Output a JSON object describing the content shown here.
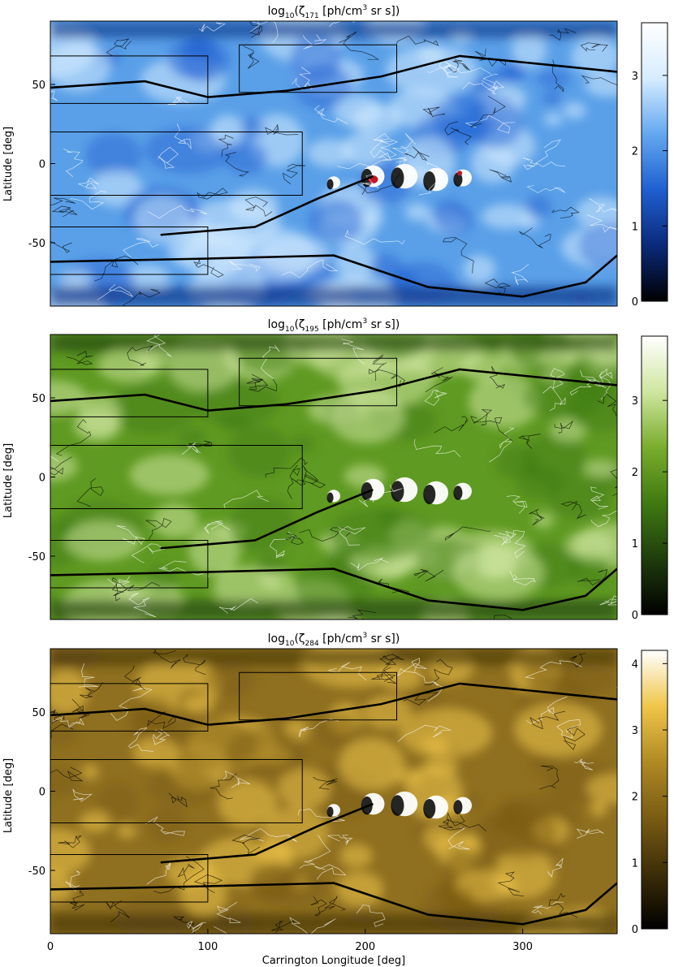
{
  "chart_data": [
    {
      "type": "heatmap",
      "title_main": "log",
      "title_base": "10",
      "title_paren_open": "(ζ",
      "title_sub": "171",
      "title_unit": " [ph/cm",
      "title_sup": "3",
      "title_tail": " sr s])",
      "ylabel": "Latitude [deg]",
      "xlim": [
        0,
        360
      ],
      "ylim": [
        -90,
        90
      ],
      "yticks": [
        "50",
        "0",
        "-50"
      ],
      "yticks_values": [
        50,
        0,
        -50
      ],
      "colorbar_ticks": [
        "3",
        "2",
        "1",
        "0"
      ],
      "colorbar_values": [
        3,
        2,
        1,
        0
      ],
      "colorbar_range": [
        0,
        3.7
      ],
      "colormap": [
        "#000000",
        "#0a2a7a",
        "#1f5fd0",
        "#63a8f0",
        "#d6ecff",
        "#ffffff"
      ],
      "base_color": "#5aa0e8",
      "accent": "#c0182a"
    },
    {
      "type": "heatmap",
      "title_main": "log",
      "title_base": "10",
      "title_paren_open": "(ζ",
      "title_sub": "195",
      "title_unit": " [ph/cm",
      "title_sup": "3",
      "title_tail": " sr s])",
      "ylabel": "Latitude [deg]",
      "xlim": [
        0,
        360
      ],
      "ylim": [
        -90,
        90
      ],
      "yticks": [
        "50",
        "0",
        "-50"
      ],
      "yticks_values": [
        50,
        0,
        -50
      ],
      "colorbar_ticks": [
        "3",
        "2",
        "1",
        "0"
      ],
      "colorbar_values": [
        3,
        2,
        1,
        0
      ],
      "colorbar_range": [
        0,
        3.9
      ],
      "colormap": [
        "#000000",
        "#1f3d0c",
        "#3f7a12",
        "#79ad2c",
        "#cfe6a0",
        "#ffffff"
      ],
      "base_color": "#5f9a22"
    },
    {
      "type": "heatmap",
      "title_main": "log",
      "title_base": "10",
      "title_paren_open": "(ζ",
      "title_sub": "284",
      "title_unit": " [ph/cm",
      "title_sup": "3",
      "title_tail": " sr s])",
      "ylabel": "Latitude [deg]",
      "xlabel": "Carrington Longitude [deg]",
      "xticks": [
        "0",
        "100",
        "200",
        "300"
      ],
      "xticks_values": [
        0,
        100,
        200,
        300
      ],
      "xlim": [
        0,
        360
      ],
      "ylim": [
        -90,
        90
      ],
      "yticks": [
        "50",
        "0",
        "-50"
      ],
      "yticks_values": [
        50,
        0,
        -50
      ],
      "colorbar_ticks": [
        "4",
        "3",
        "2",
        "1",
        "0"
      ],
      "colorbar_values": [
        4,
        3,
        2,
        1,
        0
      ],
      "colorbar_range": [
        0,
        4.2
      ],
      "colormap": [
        "#000000",
        "#3d2e08",
        "#7a5c14",
        "#b08a24",
        "#f0c64a",
        "#ffffff"
      ],
      "base_color": "#8f7020"
    }
  ]
}
